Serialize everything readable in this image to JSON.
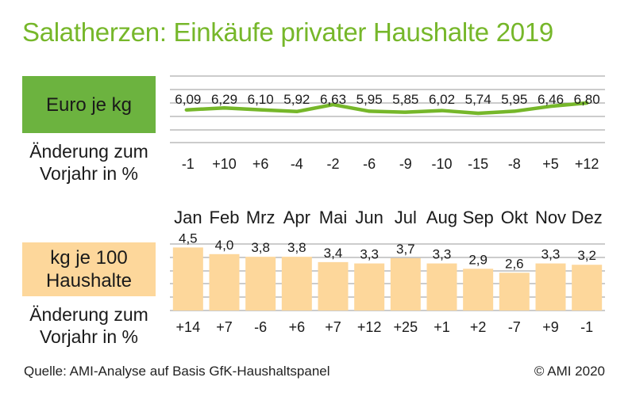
{
  "title": "Salatherzen: Einkäufe privater Haushalte 2019",
  "price_box": {
    "label": "Euro je kg",
    "color": "#6cb33f"
  },
  "qty_box": {
    "label_line1": "kg je 100",
    "label_line2": "Haushalte",
    "color": "#fdd79b"
  },
  "change_label": {
    "line1": "Änderung zum",
    "line2": "Vorjahr in %"
  },
  "source": "Quelle: AMI-Analyse auf Basis GfK-Haushaltspanel",
  "copyright": "© AMI 2020",
  "chart_data": [
    {
      "type": "line",
      "categories": [
        "Jan",
        "Feb",
        "Mrz",
        "Apr",
        "Mai",
        "Jun",
        "Jul",
        "Aug",
        "Sep",
        "Okt",
        "Nov",
        "Dez"
      ],
      "values": [
        6.09,
        6.29,
        6.1,
        5.92,
        6.63,
        5.95,
        5.85,
        6.02,
        5.74,
        5.95,
        6.46,
        6.8
      ],
      "value_labels": [
        "6,09",
        "6,29",
        "6,10",
        "5,92",
        "6,63",
        "5,95",
        "5,85",
        "6,02",
        "5,74",
        "5,95",
        "6,46",
        "6,80"
      ],
      "change_pct": [
        "-1",
        "+10",
        "+6",
        "-4",
        "-2",
        "-6",
        "-9",
        "-10",
        "-15",
        "-8",
        "+5",
        "+12"
      ],
      "color": "#76b72a",
      "grid": true
    },
    {
      "type": "bar",
      "categories": [
        "Jan",
        "Feb",
        "Mrz",
        "Apr",
        "Mai",
        "Jun",
        "Jul",
        "Aug",
        "Sep",
        "Okt",
        "Nov",
        "Dez"
      ],
      "values": [
        4.5,
        4.0,
        3.8,
        3.8,
        3.4,
        3.3,
        3.7,
        3.3,
        2.9,
        2.6,
        3.3,
        3.2
      ],
      "value_labels": [
        "4,5",
        "4,0",
        "3,8",
        "3,8",
        "3,4",
        "3,3",
        "3,7",
        "3,3",
        "2,9",
        "2,6",
        "3,3",
        "3,2"
      ],
      "change_pct": [
        "+14",
        "+7",
        "-6",
        "+6",
        "+7",
        "+12",
        "+25",
        "+1",
        "+2",
        "-7",
        "+9",
        "-1"
      ],
      "ylim": [
        0,
        5
      ],
      "color": "#fdd79b",
      "grid": true
    }
  ]
}
